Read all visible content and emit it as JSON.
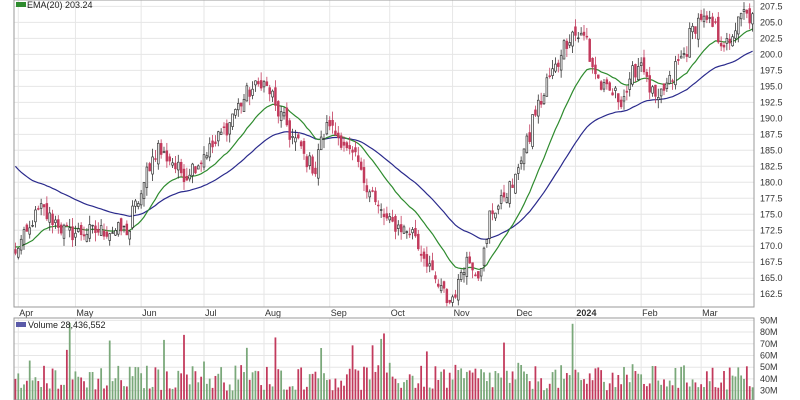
{
  "chart_data": [
    {
      "type": "candlestick",
      "legend": [
        {
          "label": "EMA(20) 203.24",
          "color": "#2e8b2e"
        }
      ],
      "y_ticks": [
        "162.5",
        "165.0",
        "167.5",
        "170.0",
        "172.5",
        "175.0",
        "177.5",
        "180.0",
        "182.5",
        "185.0",
        "187.5",
        "190.0",
        "192.5",
        "195.0",
        "197.5",
        "200.0",
        "202.5",
        "205.0",
        "207.5"
      ],
      "ylim": [
        160.5,
        208.5
      ],
      "y_scale": "linear",
      "x_ticks": [
        "Apr",
        "May",
        "Jun",
        "Jul",
        "Aug",
        "Sep",
        "Oct",
        "Nov",
        "Dec",
        "2024",
        "Feb",
        "Mar"
      ],
      "grid": true,
      "axis_side": "right",
      "up_color": "#7aa87a",
      "down_color": "#c23a5c",
      "ema20_color": "#2e8b2e",
      "ema50_color": "#2a2a8c",
      "anchor_closes": [
        {
          "date": "2023-03-31",
          "close": 168.5
        },
        {
          "date": "2023-04-13",
          "close": 175.8
        },
        {
          "date": "2023-04-27",
          "close": 172.0
        },
        {
          "date": "2023-05-12",
          "close": 172.4
        },
        {
          "date": "2023-05-26",
          "close": 172.5
        },
        {
          "date": "2023-06-09",
          "close": 185.6
        },
        {
          "date": "2023-06-23",
          "close": 181.0
        },
        {
          "date": "2023-07-10",
          "close": 187.0
        },
        {
          "date": "2023-07-21",
          "close": 193.0
        },
        {
          "date": "2023-07-31",
          "close": 196.0
        },
        {
          "date": "2023-08-11",
          "close": 189.0
        },
        {
          "date": "2023-08-25",
          "close": 182.0
        },
        {
          "date": "2023-09-01",
          "close": 189.5
        },
        {
          "date": "2023-09-15",
          "close": 183.0
        },
        {
          "date": "2023-09-29",
          "close": 174.0
        },
        {
          "date": "2023-10-13",
          "close": 172.0
        },
        {
          "date": "2023-10-26",
          "close": 163.0
        },
        {
          "date": "2023-10-31",
          "close": 161.3
        },
        {
          "date": "2023-11-08",
          "close": 168.0
        },
        {
          "date": "2023-11-14",
          "close": 166.0
        },
        {
          "date": "2023-11-20",
          "close": 175.0
        },
        {
          "date": "2023-12-01",
          "close": 180.0
        },
        {
          "date": "2023-12-13",
          "close": 192.0
        },
        {
          "date": "2023-12-21",
          "close": 198.0
        },
        {
          "date": "2023-12-29",
          "close": 203.5
        },
        {
          "date": "2024-01-05",
          "close": 202.5
        },
        {
          "date": "2024-01-12",
          "close": 195.0
        },
        {
          "date": "2024-01-23",
          "close": 193.0
        },
        {
          "date": "2024-02-01",
          "close": 199.0
        },
        {
          "date": "2024-02-09",
          "close": 192.0
        },
        {
          "date": "2024-02-22",
          "close": 200.0
        },
        {
          "date": "2024-03-01",
          "close": 206.0
        },
        {
          "date": "2024-03-08",
          "close": 204.0
        },
        {
          "date": "2024-03-15",
          "close": 201.0
        },
        {
          "date": "2024-03-22",
          "close": 206.5
        },
        {
          "date": "2024-03-27",
          "close": 205.5
        }
      ]
    },
    {
      "type": "bar",
      "legend": [
        {
          "label": "Volume 28,436,552",
          "color": "#5a5aa8"
        }
      ],
      "y_ticks": [
        "30M",
        "40M",
        "50M",
        "60M",
        "70M",
        "80M",
        "90M"
      ],
      "ylim": [
        22,
        92
      ],
      "unit": "M",
      "grid": true,
      "axis_side": "right"
    }
  ]
}
